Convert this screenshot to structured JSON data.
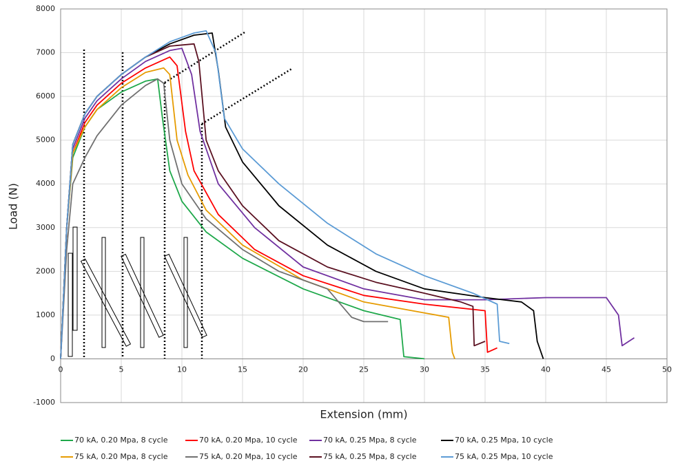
{
  "chart_data": {
    "type": "line",
    "x_label": "Extension (mm)",
    "y_label": "Load (N)",
    "xlim": [
      0,
      50
    ],
    "xticks": [
      0,
      5,
      10,
      15,
      20,
      25,
      30,
      35,
      40,
      45,
      50
    ],
    "ylim": [
      -1000,
      8000
    ],
    "yticks": [
      -1000,
      0,
      1000,
      2000,
      3000,
      4000,
      5000,
      6000,
      7000,
      8000
    ],
    "grid": true,
    "legend": "bottom",
    "series": [
      {
        "name": "70 kA, 0.20 Mpa, 8 cycle",
        "color": "#1ea84a",
        "x": [
          0,
          0.5,
          1,
          2,
          3,
          5,
          7,
          8,
          8.4,
          9,
          10,
          12,
          15,
          20,
          25,
          28,
          28.3,
          30
        ],
        "values": [
          0,
          3000,
          4600,
          5300,
          5700,
          6100,
          6350,
          6400,
          5500,
          4300,
          3600,
          2900,
          2300,
          1600,
          1100,
          900,
          50,
          0
        ]
      },
      {
        "name": "70 kA, 0.20 Mpa, 10 cycle",
        "color": "#ff0000",
        "x": [
          0,
          0.5,
          1,
          2,
          3,
          5,
          7,
          9,
          9.6,
          10.3,
          11,
          13,
          16,
          20,
          25,
          30,
          35,
          35.2,
          36
        ],
        "values": [
          0,
          3000,
          4700,
          5400,
          5800,
          6300,
          6650,
          6900,
          6700,
          5200,
          4300,
          3300,
          2500,
          1900,
          1450,
          1250,
          1100,
          150,
          250
        ]
      },
      {
        "name": "70 kA, 0.25 Mpa, 8 cycle",
        "color": "#7030a0",
        "x": [
          0,
          0.5,
          1,
          2,
          3,
          5,
          7,
          9,
          10,
          10.8,
          11.5,
          13,
          16,
          20,
          25,
          30,
          35,
          40,
          45,
          46,
          46.3,
          47.3
        ],
        "values": [
          0,
          3000,
          4800,
          5500,
          5900,
          6400,
          6800,
          7050,
          7100,
          6500,
          5200,
          4000,
          3000,
          2100,
          1600,
          1350,
          1350,
          1400,
          1400,
          1000,
          300,
          480
        ]
      },
      {
        "name": "70 kA, 0.25 Mpa, 10 cycle",
        "color": "#000000",
        "x": [
          0,
          0.5,
          1,
          2,
          3,
          5,
          7,
          9,
          11,
          12.5,
          13,
          13.6,
          15,
          18,
          22,
          26,
          30,
          35,
          38,
          39,
          39.3,
          39.8
        ],
        "values": [
          0,
          3000,
          4900,
          5600,
          6000,
          6500,
          6900,
          7200,
          7400,
          7450,
          6600,
          5300,
          4500,
          3500,
          2600,
          2000,
          1600,
          1400,
          1300,
          1100,
          400,
          0
        ]
      },
      {
        "name": "75 kA, 0.20 Mpa, 8 cycle",
        "color": "#e69b00",
        "x": [
          0,
          0.5,
          1,
          2,
          3,
          5,
          7,
          8.5,
          9,
          9.6,
          10.5,
          12,
          15,
          20,
          25,
          30,
          32,
          32.3,
          32.5
        ],
        "values": [
          0,
          3000,
          4700,
          5300,
          5700,
          6200,
          6550,
          6650,
          6500,
          5000,
          4200,
          3400,
          2600,
          1800,
          1300,
          1050,
          950,
          150,
          0
        ]
      },
      {
        "name": "75 kA, 0.20 Mpa, 10 cycle",
        "color": "#707070",
        "x": [
          0,
          0.5,
          1,
          2,
          3,
          5,
          7,
          8,
          8.5,
          9,
          10,
          12,
          15,
          18,
          20,
          22,
          24,
          25,
          27
        ],
        "values": [
          0,
          2500,
          4000,
          4600,
          5100,
          5800,
          6250,
          6400,
          6300,
          5000,
          4000,
          3200,
          2500,
          2000,
          1800,
          1600,
          950,
          850,
          850
        ]
      },
      {
        "name": "75 kA, 0.25 Mpa, 8 cycle",
        "color": "#5a1020",
        "x": [
          0,
          0.5,
          1,
          2,
          3,
          5,
          7,
          9,
          11,
          11.4,
          12,
          13,
          15,
          18,
          22,
          26,
          30,
          33,
          34,
          34.1,
          35
        ],
        "values": [
          0,
          3000,
          4900,
          5600,
          6000,
          6500,
          6900,
          7150,
          7200,
          6800,
          5000,
          4300,
          3500,
          2700,
          2100,
          1750,
          1500,
          1300,
          1200,
          300,
          400
        ]
      },
      {
        "name": "75 kA, 0.25 Mpa, 10 cycle",
        "color": "#5b9bd5",
        "x": [
          0,
          0.5,
          1,
          2,
          3,
          5,
          7,
          9,
          11,
          12,
          12.8,
          13.5,
          15,
          18,
          22,
          26,
          30,
          34,
          36,
          36.2,
          37
        ],
        "values": [
          0,
          3000,
          4900,
          5600,
          6000,
          6500,
          6900,
          7250,
          7450,
          7500,
          7000,
          5500,
          4800,
          4000,
          3100,
          2400,
          1900,
          1500,
          1250,
          400,
          350
        ]
      }
    ]
  }
}
